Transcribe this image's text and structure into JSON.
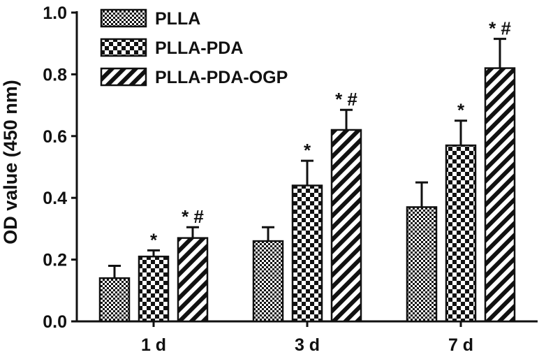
{
  "chart_data": {
    "type": "bar",
    "title": "",
    "xlabel": "",
    "ylabel": "OD value (450 nm)",
    "ylim": [
      0.0,
      1.0
    ],
    "yticks": [
      "0.0",
      "0.2",
      "0.4",
      "0.6",
      "0.8",
      "1.0"
    ],
    "categories": [
      "1 d",
      "3 d",
      "7 d"
    ],
    "grid": false,
    "legend_position": "top-left",
    "series": [
      {
        "name": "PLLA",
        "pattern": "fine-checker",
        "values": [
          0.14,
          0.26,
          0.37
        ],
        "errors": [
          0.04,
          0.045,
          0.08
        ],
        "annotations": [
          "",
          "",
          ""
        ]
      },
      {
        "name": "PLLA-PDA",
        "pattern": "coarse-checker",
        "values": [
          0.21,
          0.44,
          0.57
        ],
        "errors": [
          0.02,
          0.08,
          0.08
        ],
        "annotations": [
          "*",
          "*",
          "*"
        ]
      },
      {
        "name": "PLLA-PDA-OGP",
        "pattern": "diagonal-stripes",
        "values": [
          0.27,
          0.62,
          0.82
        ],
        "errors": [
          0.035,
          0.065,
          0.095
        ],
        "annotations": [
          "* #",
          "* #",
          "* #"
        ]
      }
    ]
  }
}
